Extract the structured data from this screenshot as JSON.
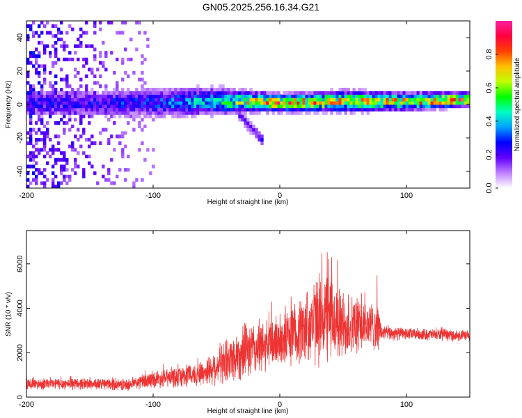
{
  "title": "GN05.2025.256.16.34.G21",
  "chart_data": [
    {
      "type": "heatmap",
      "xlabel": "Height of straight line (km)",
      "ylabel": "Frequency (Hz)",
      "xlim": [
        -200,
        150
      ],
      "ylim": [
        -50,
        50
      ],
      "xticks": [
        -200,
        -100,
        0,
        100
      ],
      "yticks": [
        -40,
        -20,
        0,
        20,
        40
      ],
      "colorbar": {
        "label": "Normalized spectral amplitude",
        "range": [
          0,
          1
        ],
        "ticks": [
          "0.0",
          "0.2",
          "0.4",
          "0.6",
          "0.8"
        ],
        "colors": [
          "#ffffff",
          "#c080ff",
          "#6000ff",
          "#0000ff",
          "#00a0ff",
          "#00ffc0",
          "#00ff00",
          "#c0ff00",
          "#ffc000",
          "#ff4000",
          "#ff0040",
          "#ff20a0"
        ]
      },
      "signal": [
        {
          "x": -150,
          "center": 0,
          "width": 8,
          "amplitude": 0.25
        },
        {
          "x": -100,
          "center": 0,
          "width": 9,
          "amplitude": 0.3
        },
        {
          "x": -50,
          "center": 1,
          "width": 8,
          "amplitude": 0.45
        },
        {
          "x": -30,
          "center": 1,
          "width": 6,
          "amplitude": 0.65
        },
        {
          "x": 0,
          "center": 0,
          "width": 5,
          "amplitude": 0.8
        },
        {
          "x": 50,
          "center": 1,
          "width": 6,
          "amplitude": 0.7
        },
        {
          "x": 100,
          "center": 1,
          "width": 5,
          "amplitude": 0.75
        },
        {
          "x": 150,
          "center": 2,
          "width": 4,
          "amplitude": 0.9
        }
      ],
      "secondary_track": [
        {
          "x": -35,
          "y": -5
        },
        {
          "x": -25,
          "y": -14
        },
        {
          "x": -15,
          "y": -22
        }
      ],
      "noise_region_x": [
        -200,
        -100
      ]
    },
    {
      "type": "line",
      "xlabel": "Height of straight line (km)",
      "ylabel": "SNR (10 * v/v)",
      "xlim": [
        -200,
        150
      ],
      "ylim": [
        0,
        7500
      ],
      "xticks": [
        -200,
        -100,
        0,
        100
      ],
      "yticks": [
        0,
        2000,
        4000,
        6000
      ],
      "color": "#ee3333",
      "envelope": [
        {
          "x": -200,
          "mean": 600,
          "amp": 250
        },
        {
          "x": -150,
          "mean": 600,
          "amp": 250
        },
        {
          "x": -120,
          "mean": 550,
          "amp": 250
        },
        {
          "x": -100,
          "mean": 800,
          "amp": 350
        },
        {
          "x": -80,
          "mean": 900,
          "amp": 450
        },
        {
          "x": -60,
          "mean": 1100,
          "amp": 550
        },
        {
          "x": -40,
          "mean": 1700,
          "amp": 1000
        },
        {
          "x": -25,
          "mean": 2100,
          "amp": 1200
        },
        {
          "x": -10,
          "mean": 2300,
          "amp": 1100
        },
        {
          "x": 0,
          "mean": 2600,
          "amp": 1200
        },
        {
          "x": 10,
          "mean": 2800,
          "amp": 1300
        },
        {
          "x": 25,
          "mean": 3300,
          "amp": 1700
        },
        {
          "x": 35,
          "mean": 3700,
          "amp": 2100
        },
        {
          "x": 50,
          "mean": 3200,
          "amp": 1500
        },
        {
          "x": 65,
          "mean": 3200,
          "amp": 1100
        },
        {
          "x": 78,
          "mean": 3200,
          "amp": 1000
        },
        {
          "x": 80,
          "mean": 2900,
          "amp": 350
        },
        {
          "x": 100,
          "mean": 2850,
          "amp": 250
        },
        {
          "x": 130,
          "mean": 2800,
          "amp": 250
        },
        {
          "x": 150,
          "mean": 2750,
          "amp": 250
        }
      ]
    }
  ]
}
